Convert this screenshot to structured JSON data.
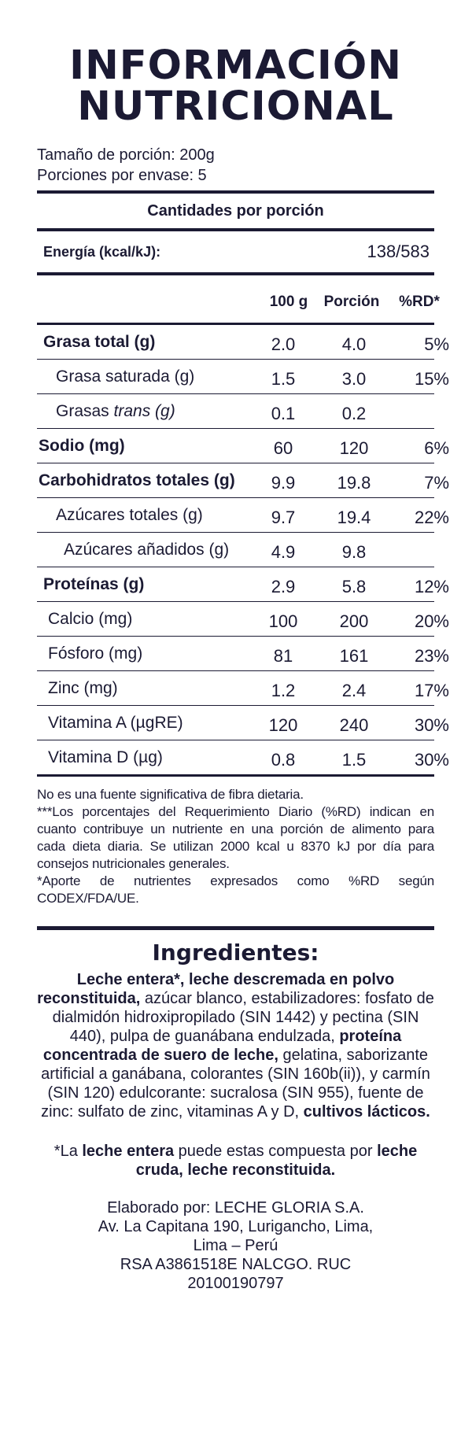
{
  "title": {
    "line1": "INFORMACIÓN",
    "line2": "NUTRICIONAL"
  },
  "serving": {
    "size": "Tamaño de porción: 200g",
    "per_container": "Porciones por envase: 5"
  },
  "amounts_header": "Cantidades por porción",
  "energy": {
    "label": "Energía (kcal/kJ):",
    "value": "138/583"
  },
  "columns": {
    "per100": "100 g",
    "portion": "Porción",
    "rd": "%RD*"
  },
  "nutrients": [
    {
      "name": "Grasa total (g)",
      "per100": "2.0",
      "portion": "4.0",
      "rd": "5%"
    },
    {
      "name": "Grasa saturada (g)",
      "per100": "1.5",
      "portion": "3.0",
      "rd": "15%"
    },
    {
      "name_prefix": "Grasas ",
      "name_italic": "trans (g)",
      "per100": "0.1",
      "portion": "0.2",
      "rd": ""
    },
    {
      "name": "Sodio (mg)",
      "per100": "60",
      "portion": "120",
      "rd": "6%"
    },
    {
      "name": "Carbohidratos totales (g)",
      "per100": "9.9",
      "portion": "19.8",
      "rd": "7%"
    },
    {
      "name": "Azúcares totales (g)",
      "per100": "9.7",
      "portion": "19.4",
      "rd": "22%"
    },
    {
      "name": "Azúcares añadidos (g)",
      "per100": "4.9",
      "portion": "9.8",
      "rd": ""
    },
    {
      "name": "Proteínas (g)",
      "per100": "2.9",
      "portion": "5.8",
      "rd": "12%"
    },
    {
      "name": "Calcio (mg)",
      "per100": "100",
      "portion": "200",
      "rd": "20%"
    },
    {
      "name": "Fósforo (mg)",
      "per100": "81",
      "portion": "161",
      "rd": "23%"
    },
    {
      "name": "Zinc (mg)",
      "per100": "1.2",
      "portion": "2.4",
      "rd": "17%"
    },
    {
      "name": "Vitamina A (µgRE)",
      "per100": "120",
      "portion": "240",
      "rd": "30%"
    },
    {
      "name": "Vitamina D (µg)",
      "per100": "0.8",
      "portion": "1.5",
      "rd": "30%"
    }
  ],
  "notes": {
    "fiber": "No es una fuente significativa de fibra dietaria.",
    "rd": "***Los porcentajes del Requerimiento Diario (%RD) indican en cuanto contribuye un nutriente en una porción de alimento para cada dieta diaria. Se utilizan 2000 kcal u 8370 kJ por día para consejos nutricionales generales.",
    "codex": "*Aporte de nutrientes expresados como %RD según CODEX/FDA/UE."
  },
  "ingredients": {
    "title": "Ingredientes:",
    "b1": "Leche entera*, leche descremada en polvo reconstituida,",
    "t1": " azúcar blanco, estabilizadores: fosfato de dialmidón hidroxipropilado (SIN 1442) y pectina (SIN 440), pulpa de guanábana endulzada, ",
    "b2": "proteína concentrada de suero de leche,",
    "t2": " gelatina, saborizante artificial a ganábana, colorantes (SIN 160b(ii)), y carmín (SIN 120) edulcorante: sucralosa (SIN 955), fuente de zinc: sulfato de zinc, vitaminas A y D, ",
    "b3": "cultivos lácticos."
  },
  "whole_milk_note": {
    "t1": "*La ",
    "b1": "leche entera",
    "t2": " puede estas compuesta por ",
    "b2": "leche cruda, leche reconstituida."
  },
  "manufacturer": {
    "line1": "Elaborado por: LECHE GLORIA S.A.",
    "line2": "Av. La Capitana 190, Lurigancho, Lima,",
    "line3": "Lima – Perú",
    "line4": "RSA A3861518E NALCGO. RUC",
    "line5": "20100190797"
  }
}
